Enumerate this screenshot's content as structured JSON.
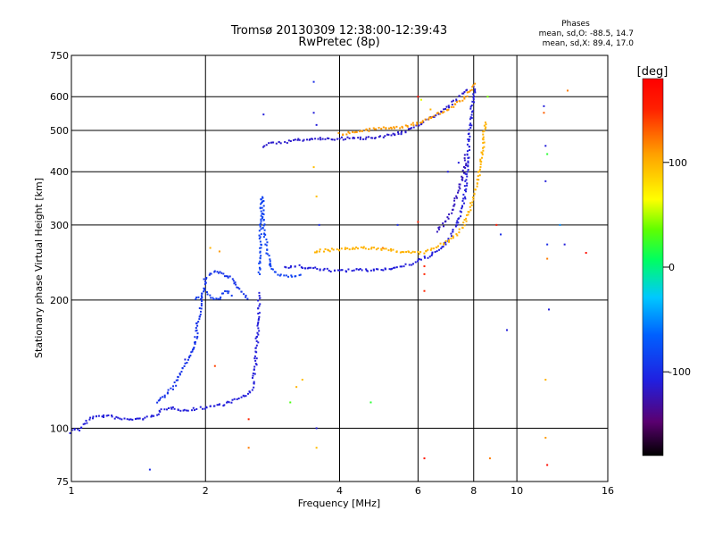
{
  "chart_data": {
    "type": "scatter",
    "title": "Tromsø 20130309 12:38:00-12:39:43",
    "subtitle": "RwPretec (8p)",
    "xlabel": "Frequency [MHz]",
    "ylabel": "Stationary phase Virtual Height [km]",
    "x_scale": "log",
    "y_scale": "log",
    "xlim": [
      1,
      16
    ],
    "ylim": [
      75,
      750
    ],
    "xticks": [
      1,
      2,
      4,
      6,
      8,
      10,
      16
    ],
    "yticks": [
      75,
      100,
      200,
      300,
      400,
      500,
      600,
      750
    ],
    "grid": true,
    "colorbar": {
      "label": "[deg]",
      "range": [
        -180,
        180
      ],
      "ticks": [
        100,
        0,
        -100
      ]
    },
    "phase_stats": {
      "heading": "Phases",
      "o_line": "mean, sd,O: -88.5, 14.7",
      "x_line": "mean, sd,X: 89.4, 17.0"
    },
    "traces": [
      {
        "phase": -110,
        "points": [
          [
            1.0,
            98
          ],
          [
            1.02,
            100
          ],
          [
            1.04,
            99
          ],
          [
            1.1,
            106
          ],
          [
            1.2,
            107
          ],
          [
            1.3,
            105
          ],
          [
            1.4,
            105
          ],
          [
            1.5,
            106
          ],
          [
            1.55,
            108
          ],
          [
            1.6,
            110
          ],
          [
            1.7,
            112
          ],
          [
            1.8,
            110
          ],
          [
            1.9,
            111
          ],
          [
            2.0,
            112
          ],
          [
            2.1,
            113
          ],
          [
            2.2,
            114
          ],
          [
            2.3,
            116
          ],
          [
            2.4,
            118
          ],
          [
            2.5,
            120
          ],
          [
            2.55,
            125
          ],
          [
            2.58,
            135
          ],
          [
            2.6,
            150
          ],
          [
            2.62,
            170
          ],
          [
            2.63,
            190
          ],
          [
            2.64,
            210
          ]
        ]
      },
      {
        "phase": -95,
        "points": [
          [
            1.55,
            115
          ],
          [
            1.6,
            118
          ],
          [
            1.7,
            125
          ],
          [
            1.75,
            135
          ],
          [
            1.8,
            140
          ],
          [
            1.85,
            150
          ],
          [
            1.9,
            160
          ],
          [
            1.92,
            175
          ],
          [
            1.95,
            190
          ],
          [
            1.98,
            210
          ],
          [
            2.0,
            225
          ],
          [
            2.05,
            230
          ],
          [
            2.1,
            235
          ],
          [
            2.15,
            232
          ],
          [
            2.2,
            228
          ],
          [
            2.3,
            225
          ],
          [
            2.35,
            215
          ],
          [
            2.4,
            210
          ],
          [
            2.45,
            205
          ],
          [
            2.5,
            200
          ]
        ]
      },
      {
        "phase": -90,
        "points": [
          [
            1.9,
            200
          ],
          [
            1.95,
            205
          ],
          [
            2.0,
            210
          ],
          [
            2.05,
            205
          ],
          [
            2.1,
            200
          ],
          [
            2.15,
            202
          ],
          [
            2.2,
            210
          ],
          [
            2.3,
            205
          ]
        ]
      },
      {
        "phase": -85,
        "points": [
          [
            2.64,
            230
          ],
          [
            2.65,
            260
          ],
          [
            2.66,
            290
          ],
          [
            2.67,
            320
          ],
          [
            2.68,
            350
          ],
          [
            2.7,
            300
          ],
          [
            2.72,
            280
          ],
          [
            2.74,
            270
          ],
          [
            2.76,
            255
          ],
          [
            2.8,
            240
          ],
          [
            2.85,
            235
          ],
          [
            2.9,
            230
          ],
          [
            3.0,
            228
          ],
          [
            3.1,
            228
          ],
          [
            3.3,
            230
          ]
        ]
      },
      {
        "phase": -110,
        "points": [
          [
            3.0,
            238
          ],
          [
            3.2,
            240
          ],
          [
            3.4,
            238
          ],
          [
            3.6,
            236
          ],
          [
            3.8,
            235
          ],
          [
            4.0,
            234
          ],
          [
            4.3,
            235
          ],
          [
            4.6,
            235
          ],
          [
            5.0,
            236
          ],
          [
            5.3,
            238
          ],
          [
            5.6,
            240
          ],
          [
            5.9,
            245
          ],
          [
            6.2,
            250
          ],
          [
            6.5,
            258
          ],
          [
            6.8,
            265
          ],
          [
            7.0,
            275
          ],
          [
            7.2,
            290
          ],
          [
            7.4,
            310
          ],
          [
            7.6,
            340
          ],
          [
            7.7,
            380
          ],
          [
            7.75,
            420
          ],
          [
            7.8,
            460
          ],
          [
            7.85,
            500
          ],
          [
            7.9,
            540
          ],
          [
            7.95,
            580
          ],
          [
            8.0,
            610
          ],
          [
            8.05,
            640
          ]
        ]
      },
      {
        "phase": -115,
        "points": [
          [
            2.7,
            460
          ],
          [
            2.8,
            465
          ],
          [
            3.0,
            470
          ],
          [
            3.2,
            474
          ],
          [
            3.4,
            476
          ],
          [
            3.6,
            478
          ],
          [
            3.8,
            478
          ],
          [
            4.0,
            478
          ],
          [
            4.3,
            479
          ],
          [
            4.6,
            480
          ],
          [
            5.0,
            485
          ],
          [
            5.3,
            490
          ],
          [
            5.6,
            495
          ],
          [
            6.2,
            525
          ],
          [
            6.5,
            540
          ],
          [
            6.8,
            555
          ],
          [
            7.0,
            570
          ],
          [
            7.3,
            590
          ],
          [
            7.6,
            610
          ],
          [
            7.8,
            630
          ]
        ]
      },
      {
        "phase": -120,
        "points": [
          [
            6.6,
            290
          ],
          [
            6.8,
            300
          ],
          [
            7.0,
            310
          ],
          [
            7.1,
            320
          ],
          [
            7.2,
            330
          ],
          [
            7.3,
            345
          ],
          [
            7.4,
            360
          ],
          [
            7.5,
            380
          ],
          [
            7.6,
            400
          ],
          [
            7.65,
            420
          ],
          [
            7.7,
            440
          ]
        ]
      },
      {
        "phase": 100,
        "points": [
          [
            3.5,
            260
          ],
          [
            3.7,
            262
          ],
          [
            3.9,
            262
          ],
          [
            4.1,
            263
          ],
          [
            4.3,
            264
          ],
          [
            4.6,
            265
          ],
          [
            4.9,
            264
          ],
          [
            5.2,
            262
          ],
          [
            5.5,
            260
          ],
          [
            5.8,
            258
          ],
          [
            6.1,
            258
          ],
          [
            6.4,
            262
          ],
          [
            6.7,
            268
          ],
          [
            7.0,
            275
          ],
          [
            7.3,
            285
          ],
          [
            7.6,
            300
          ],
          [
            7.8,
            320
          ],
          [
            8.0,
            350
          ],
          [
            8.2,
            390
          ],
          [
            8.3,
            420
          ],
          [
            8.4,
            460
          ],
          [
            8.45,
            500
          ],
          [
            8.5,
            530
          ]
        ]
      },
      {
        "phase": 110,
        "points": [
          [
            4.0,
            490
          ],
          [
            4.3,
            495
          ],
          [
            4.6,
            500
          ],
          [
            4.9,
            505
          ],
          [
            5.2,
            508
          ],
          [
            5.5,
            510
          ],
          [
            6.0,
            520
          ],
          [
            6.3,
            530
          ],
          [
            6.6,
            545
          ],
          [
            7.0,
            560
          ],
          [
            7.3,
            575
          ],
          [
            7.6,
            595
          ],
          [
            7.8,
            615
          ],
          [
            8.0,
            630
          ],
          [
            8.1,
            650
          ]
        ]
      }
    ],
    "scattered_points": [
      {
        "x": 2.7,
        "y": 545,
        "phase": -110
      },
      {
        "x": 3.5,
        "y": 650,
        "phase": -100
      },
      {
        "x": 3.5,
        "y": 550,
        "phase": -110
      },
      {
        "x": 3.55,
        "y": 515,
        "phase": -110
      },
      {
        "x": 3.5,
        "y": 410,
        "phase": 95
      },
      {
        "x": 3.55,
        "y": 350,
        "phase": 95
      },
      {
        "x": 3.6,
        "y": 300,
        "phase": -100
      },
      {
        "x": 3.55,
        "y": 100,
        "phase": -110
      },
      {
        "x": 3.55,
        "y": 90,
        "phase": 95
      },
      {
        "x": 3.3,
        "y": 130,
        "phase": 95
      },
      {
        "x": 3.2,
        "y": 125,
        "phase": 100
      },
      {
        "x": 3.1,
        "y": 115,
        "phase": 30
      },
      {
        "x": 2.5,
        "y": 105,
        "phase": 150
      },
      {
        "x": 2.5,
        "y": 90,
        "phase": 120
      },
      {
        "x": 2.1,
        "y": 140,
        "phase": 140
      },
      {
        "x": 2.05,
        "y": 265,
        "phase": 100
      },
      {
        "x": 2.15,
        "y": 260,
        "phase": 110
      },
      {
        "x": 1.5,
        "y": 80,
        "phase": -100
      },
      {
        "x": 1.8,
        "y": 145,
        "phase": -110
      },
      {
        "x": 4.7,
        "y": 115,
        "phase": 20
      },
      {
        "x": 5.0,
        "y": 265,
        "phase": 120
      },
      {
        "x": 5.4,
        "y": 300,
        "phase": -100
      },
      {
        "x": 5.5,
        "y": 490,
        "phase": -110
      },
      {
        "x": 6.0,
        "y": 600,
        "phase": 170
      },
      {
        "x": 6.1,
        "y": 590,
        "phase": 60
      },
      {
        "x": 6.2,
        "y": 85,
        "phase": 160
      },
      {
        "x": 6.2,
        "y": 210,
        "phase": 150
      },
      {
        "x": 6.2,
        "y": 230,
        "phase": 150
      },
      {
        "x": 6.2,
        "y": 240,
        "phase": 150
      },
      {
        "x": 6.0,
        "y": 305,
        "phase": 150
      },
      {
        "x": 6.4,
        "y": 560,
        "phase": 100
      },
      {
        "x": 7.0,
        "y": 400,
        "phase": -110
      },
      {
        "x": 7.4,
        "y": 420,
        "phase": -110
      },
      {
        "x": 8.6,
        "y": 600,
        "phase": 40
      },
      {
        "x": 8.7,
        "y": 85,
        "phase": 120
      },
      {
        "x": 9.0,
        "y": 300,
        "phase": 160
      },
      {
        "x": 9.2,
        "y": 285,
        "phase": -100
      },
      {
        "x": 9.5,
        "y": 170,
        "phase": -110
      },
      {
        "x": 11.5,
        "y": 570,
        "phase": -110
      },
      {
        "x": 11.5,
        "y": 550,
        "phase": 130
      },
      {
        "x": 11.6,
        "y": 460,
        "phase": -110
      },
      {
        "x": 11.7,
        "y": 440,
        "phase": 20
      },
      {
        "x": 11.6,
        "y": 380,
        "phase": -110
      },
      {
        "x": 11.7,
        "y": 270,
        "phase": -100
      },
      {
        "x": 11.7,
        "y": 250,
        "phase": 120
      },
      {
        "x": 11.8,
        "y": 190,
        "phase": -110
      },
      {
        "x": 11.6,
        "y": 130,
        "phase": 100
      },
      {
        "x": 11.6,
        "y": 95,
        "phase": 110
      },
      {
        "x": 11.7,
        "y": 82,
        "phase": 170
      },
      {
        "x": 12.5,
        "y": 300,
        "phase": -50
      },
      {
        "x": 12.8,
        "y": 270,
        "phase": -110
      },
      {
        "x": 13.0,
        "y": 620,
        "phase": 120
      },
      {
        "x": 14.3,
        "y": 258,
        "phase": 170
      }
    ]
  }
}
